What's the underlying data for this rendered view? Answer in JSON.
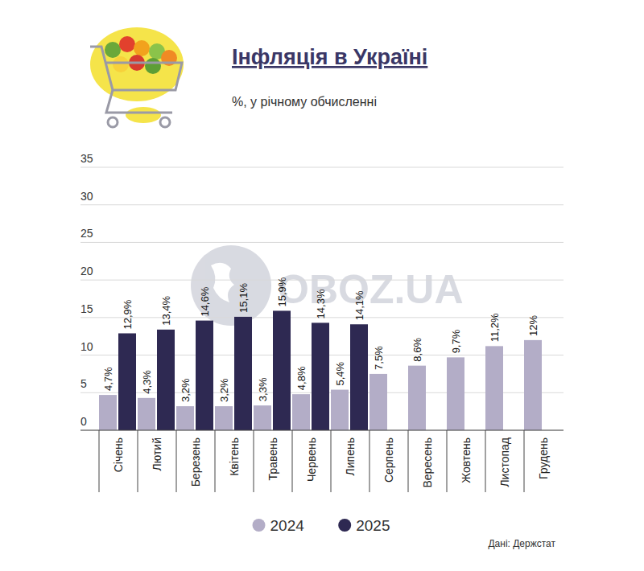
{
  "chart_data": {
    "type": "bar",
    "title": "Інфляція в Україні",
    "subtitle": "%, у річному обчисленні",
    "source": "Дані: Держстат",
    "watermark": "OBOZ.UA",
    "categories": [
      "Січень",
      "Лютий",
      "Березень",
      "Квітень",
      "Травень",
      "Червень",
      "Липень",
      "Серпень",
      "Вересень",
      "Жовтень",
      "Листопад",
      "Грудень"
    ],
    "series": [
      {
        "name": "2024",
        "color": "#b3adc7",
        "values": [
          4.7,
          4.3,
          3.2,
          3.2,
          3.3,
          4.8,
          5.4,
          7.5,
          8.6,
          9.7,
          11.2,
          12
        ],
        "value_labels": [
          "4,7%",
          "4,3%",
          "3,2%",
          "3,2%",
          "3,3%",
          "4,8%",
          "5,4%",
          "7,5%",
          "8,6%",
          "9,7%",
          "11,2%",
          "12%"
        ]
      },
      {
        "name": "2025",
        "color": "#2e2952",
        "values": [
          12.9,
          13.4,
          14.6,
          15.1,
          15.9,
          14.3,
          14.1,
          null,
          null,
          null,
          null,
          null
        ],
        "value_labels": [
          "12,9%",
          "13,4%",
          "14,6%",
          "15,1%",
          "15,9%",
          "14,3%",
          "14,1%",
          null,
          null,
          null,
          null,
          null
        ]
      }
    ],
    "ylim": [
      0,
      35
    ],
    "yticks": [
      0,
      5,
      10,
      15,
      20,
      25,
      30,
      35
    ],
    "grid": true,
    "data_labels": true,
    "legend": "bottom"
  }
}
